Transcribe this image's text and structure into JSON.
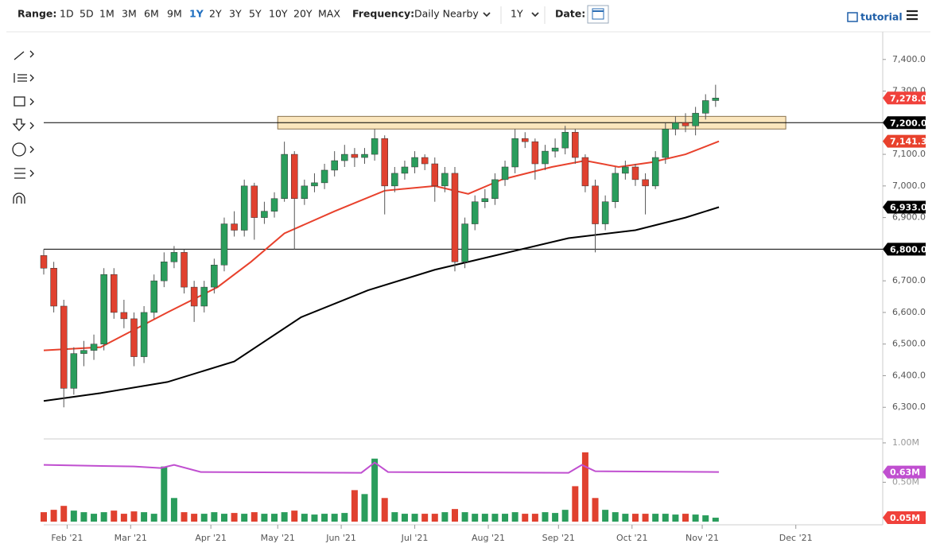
{
  "toolbar": {
    "range_label": "Range:",
    "ranges": [
      "1D",
      "5D",
      "1M",
      "3M",
      "6M",
      "9M",
      "1Y",
      "2Y",
      "3Y",
      "5Y",
      "10Y",
      "20Y",
      "MAX"
    ],
    "active_range": "1Y",
    "frequency_label": "Frequency:",
    "frequency": "Daily Nearby",
    "period": "1Y",
    "date_label": "Date:",
    "tutorial": "tutorial"
  },
  "chart_data": [
    {
      "type": "candlestick",
      "x": [
        -7,
        -4,
        -1,
        2,
        5,
        8,
        11,
        14,
        17,
        20,
        23,
        26,
        29,
        32,
        35,
        38,
        41,
        44,
        47,
        50,
        53,
        56,
        59,
        62,
        65,
        68,
        71,
        74,
        77,
        80,
        83,
        86,
        89,
        92,
        95,
        98,
        101,
        104,
        107,
        110,
        113,
        116,
        119,
        122,
        125,
        128,
        131,
        134,
        137,
        140,
        143,
        146,
        149,
        152,
        155,
        158,
        161,
        164,
        167,
        170,
        173,
        176,
        179,
        182,
        185,
        188,
        191,
        194
      ],
      "ohlc": [
        [
          6780,
          6800,
          6720,
          6740
        ],
        [
          6740,
          6760,
          6600,
          6620
        ],
        [
          6620,
          6640,
          6300,
          6360
        ],
        [
          6360,
          6490,
          6340,
          6470
        ],
        [
          6470,
          6510,
          6430,
          6480
        ],
        [
          6480,
          6530,
          6450,
          6500
        ],
        [
          6500,
          6740,
          6480,
          6720
        ],
        [
          6720,
          6740,
          6580,
          6600
        ],
        [
          6600,
          6640,
          6550,
          6580
        ],
        [
          6580,
          6600,
          6430,
          6460
        ],
        [
          6460,
          6620,
          6440,
          6600
        ],
        [
          6600,
          6720,
          6580,
          6700
        ],
        [
          6700,
          6790,
          6680,
          6760
        ],
        [
          6760,
          6810,
          6740,
          6790
        ],
        [
          6790,
          6800,
          6660,
          6680
        ],
        [
          6680,
          6700,
          6570,
          6620
        ],
        [
          6620,
          6700,
          6600,
          6680
        ],
        [
          6680,
          6770,
          6660,
          6750
        ],
        [
          6750,
          6900,
          6730,
          6880
        ],
        [
          6880,
          6920,
          6840,
          6860
        ],
        [
          6860,
          7020,
          6840,
          7000
        ],
        [
          7000,
          7010,
          6830,
          6900
        ],
        [
          6900,
          6950,
          6880,
          6920
        ],
        [
          6920,
          6980,
          6900,
          6960
        ],
        [
          6960,
          7140,
          6950,
          7100
        ],
        [
          7100,
          7110,
          6800,
          6960
        ],
        [
          6960,
          7020,
          6940,
          7000
        ],
        [
          7000,
          7040,
          6980,
          7010
        ],
        [
          7010,
          7070,
          6990,
          7050
        ],
        [
          7050,
          7110,
          7030,
          7080
        ],
        [
          7080,
          7130,
          7060,
          7100
        ],
        [
          7100,
          7120,
          7060,
          7090
        ],
        [
          7090,
          7120,
          7070,
          7100
        ],
        [
          7100,
          7180,
          7080,
          7150
        ],
        [
          7150,
          7160,
          6910,
          7000
        ],
        [
          7000,
          7060,
          6980,
          7040
        ],
        [
          7040,
          7080,
          7020,
          7060
        ],
        [
          7060,
          7110,
          7040,
          7090
        ],
        [
          7090,
          7100,
          7050,
          7070
        ],
        [
          7070,
          7090,
          6950,
          7000
        ],
        [
          7000,
          7060,
          6980,
          7040
        ],
        [
          7040,
          7060,
          6730,
          6760
        ],
        [
          6760,
          6900,
          6740,
          6880
        ],
        [
          6880,
          6970,
          6860,
          6950
        ],
        [
          6950,
          6990,
          6930,
          6960
        ],
        [
          6960,
          7040,
          6940,
          7020
        ],
        [
          7020,
          7080,
          7000,
          7060
        ],
        [
          7060,
          7180,
          7040,
          7150
        ],
        [
          7150,
          7170,
          7120,
          7140
        ],
        [
          7140,
          7150,
          7020,
          7070
        ],
        [
          7070,
          7130,
          7050,
          7110
        ],
        [
          7110,
          7150,
          7090,
          7120
        ],
        [
          7120,
          7190,
          7100,
          7170
        ],
        [
          7170,
          7180,
          7070,
          7090
        ],
        [
          7090,
          7100,
          6980,
          7000
        ],
        [
          7000,
          7020,
          6790,
          6880
        ],
        [
          6880,
          6970,
          6860,
          6950
        ],
        [
          6950,
          7060,
          6930,
          7040
        ],
        [
          7040,
          7080,
          7020,
          7060
        ],
        [
          7060,
          7070,
          7000,
          7020
        ],
        [
          7020,
          7040,
          6910,
          7000
        ],
        [
          7000,
          7110,
          6990,
          7090
        ],
        [
          7090,
          7200,
          7070,
          7180
        ],
        [
          7180,
          7220,
          7160,
          7200
        ],
        [
          7200,
          7230,
          7170,
          7190
        ],
        [
          7190,
          7250,
          7160,
          7230
        ],
        [
          7230,
          7290,
          7210,
          7270
        ],
        [
          7270,
          7320,
          7250,
          7278
        ]
      ],
      "close_label": "7,278.0",
      "close_label_color": "#f0413b",
      "up_color": "#2a9d5c",
      "down_color": "#e0412f",
      "xlim": [
        -7,
        244
      ],
      "ylim": [
        6200,
        7500
      ],
      "xticks": [
        {
          "value": 0,
          "label": "Feb '21"
        },
        {
          "value": 19,
          "label": "Mar '21"
        },
        {
          "value": 43,
          "label": "Apr '21"
        },
        {
          "value": 63,
          "label": "May '21"
        },
        {
          "value": 82,
          "label": "Jun '21"
        },
        {
          "value": 104,
          "label": "Jul '21"
        },
        {
          "value": 126,
          "label": "Aug '21"
        },
        {
          "value": 147,
          "label": "Sep '21"
        },
        {
          "value": 169,
          "label": "Oct '21"
        },
        {
          "value": 190,
          "label": "Nov '21"
        },
        {
          "value": 218,
          "label": "Dec '21"
        }
      ],
      "yticks": [
        {
          "value": 6300,
          "label": "6,300.0"
        },
        {
          "value": 6400,
          "label": "6,400.0"
        },
        {
          "value": 6500,
          "label": "6,500.0"
        },
        {
          "value": 6600,
          "label": "6,600.0"
        },
        {
          "value": 6700,
          "label": "6,700.0"
        },
        {
          "value": 6800,
          "label": "6,800.0"
        },
        {
          "value": 6900,
          "label": "6,900.0"
        },
        {
          "value": 7000,
          "label": "7,000.0"
        },
        {
          "value": 7100,
          "label": "7,100.0"
        },
        {
          "value": 7200,
          "label": "7,200.0"
        },
        {
          "value": 7300,
          "label": "7,300.0"
        },
        {
          "value": 7400,
          "label": "7,400.0"
        }
      ],
      "lines": [
        {
          "color": "#e8412c",
          "x": [
            -7,
            10,
            30,
            45,
            55,
            65,
            80,
            95,
            110,
            120,
            130,
            145,
            155,
            165,
            175,
            185,
            195
          ],
          "values": [
            6480,
            6490,
            6600,
            6680,
            6760,
            6850,
            6920,
            6985,
            7000,
            6975,
            7020,
            7060,
            7080,
            7060,
            7075,
            7100,
            7141.3
          ],
          "value_label": "7,141.3"
        },
        {
          "color": "#000000",
          "x": [
            -7,
            10,
            30,
            50,
            70,
            90,
            110,
            130,
            150,
            170,
            185,
            195
          ],
          "values": [
            6320,
            6345,
            6380,
            6445,
            6585,
            6670,
            6735,
            6785,
            6835,
            6860,
            6900,
            6933
          ],
          "value_label": "6,933.0"
        }
      ],
      "levels": [
        {
          "value": 7200,
          "label": "7,200.0",
          "color": "#000000"
        },
        {
          "value": 6800,
          "label": "6,800.0",
          "color": "#000000"
        }
      ],
      "zone": {
        "low": 7180,
        "high": 7220,
        "x": [
          63,
          215
        ],
        "color": "#fbe6bd"
      }
    },
    {
      "type": "bar",
      "values": [
        0.12,
        0.15,
        0.2,
        0.14,
        0.12,
        0.1,
        0.12,
        0.14,
        0.1,
        0.13,
        0.12,
        0.1,
        0.7,
        0.3,
        0.12,
        0.1,
        0.1,
        0.12,
        0.1,
        0.11,
        0.1,
        0.12,
        0.1,
        0.1,
        0.12,
        0.14,
        0.1,
        0.09,
        0.1,
        0.1,
        0.11,
        0.4,
        0.35,
        0.8,
        0.3,
        0.12,
        0.1,
        0.1,
        0.1,
        0.1,
        0.12,
        0.16,
        0.12,
        0.1,
        0.1,
        0.1,
        0.1,
        0.12,
        0.1,
        0.1,
        0.12,
        0.11,
        0.15,
        0.45,
        0.88,
        0.3,
        0.15,
        0.12,
        0.1,
        0.1,
        0.1,
        0.1,
        0.1,
        0.09,
        0.1,
        0.09,
        0.08,
        0.05
      ],
      "last_label": "0.05M",
      "last_label_color": "#f0413b",
      "ylim": [
        0,
        1.05
      ],
      "yticks": [
        {
          "value": 1,
          "label": "1.00M"
        },
        {
          "value": 0.5,
          "label": "0.50M"
        }
      ],
      "average": {
        "color": "#c04fd0",
        "x": [
          -7,
          20,
          28,
          32,
          40,
          88,
          92,
          96,
          150,
          154,
          158,
          195
        ],
        "values": [
          0.72,
          0.7,
          0.68,
          0.72,
          0.63,
          0.62,
          0.75,
          0.63,
          0.62,
          0.72,
          0.64,
          0.63
        ],
        "value_label": "0.63M"
      }
    }
  ]
}
